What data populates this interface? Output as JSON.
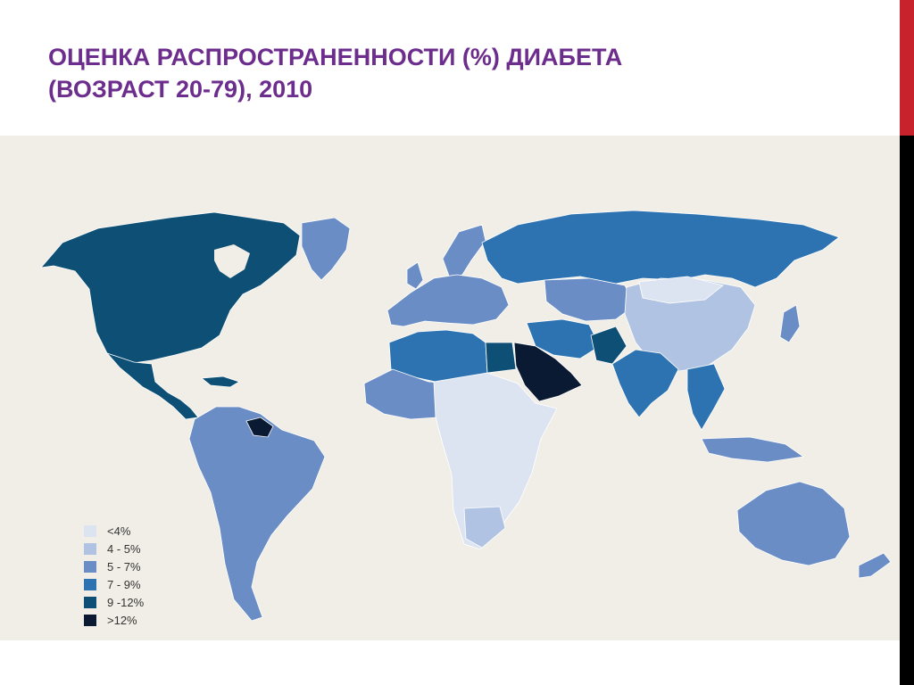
{
  "slide": {
    "title_line1": "ОЦЕНКА РАСПРОСТРАНЕННОСТИ (%) ДИАБЕТА",
    "title_line2": "(ВОЗРАСТ 20-79), 2010",
    "title_color": "#6c2d8d",
    "accent_red": "#c8232c"
  },
  "map": {
    "background": "#f1eee7",
    "legend": [
      {
        "label": "<4%",
        "color": "#dde4f1"
      },
      {
        "label": "4 - 5%",
        "color": "#b0c3e2"
      },
      {
        "label": "5 - 7%",
        "color": "#6a8dc6"
      },
      {
        "label": "7 - 9%",
        "color": "#2d73b2"
      },
      {
        "label": "9 -12%",
        "color": "#0e4f75"
      },
      {
        "label": ">12%",
        "color": "#0a1a33"
      }
    ],
    "regions": [
      {
        "name": "north-america",
        "class": "9 -12%"
      },
      {
        "name": "greenland",
        "class": "5 - 7%"
      },
      {
        "name": "central-america",
        "class": "9 -12%"
      },
      {
        "name": "south-america",
        "class": "5 - 7%"
      },
      {
        "name": "guyana",
        "class": ">12%"
      },
      {
        "name": "western-europe",
        "class": "5 - 7%"
      },
      {
        "name": "russia",
        "class": "7 - 9%"
      },
      {
        "name": "north-africa",
        "class": "7 - 9%"
      },
      {
        "name": "egypt",
        "class": "9 -12%"
      },
      {
        "name": "saudi-arabia",
        "class": ">12%"
      },
      {
        "name": "sub-saharan-africa",
        "class": "<4%"
      },
      {
        "name": "china",
        "class": "4 - 5%"
      },
      {
        "name": "india",
        "class": "7 - 9%"
      },
      {
        "name": "australia",
        "class": "5 - 7%"
      }
    ]
  }
}
